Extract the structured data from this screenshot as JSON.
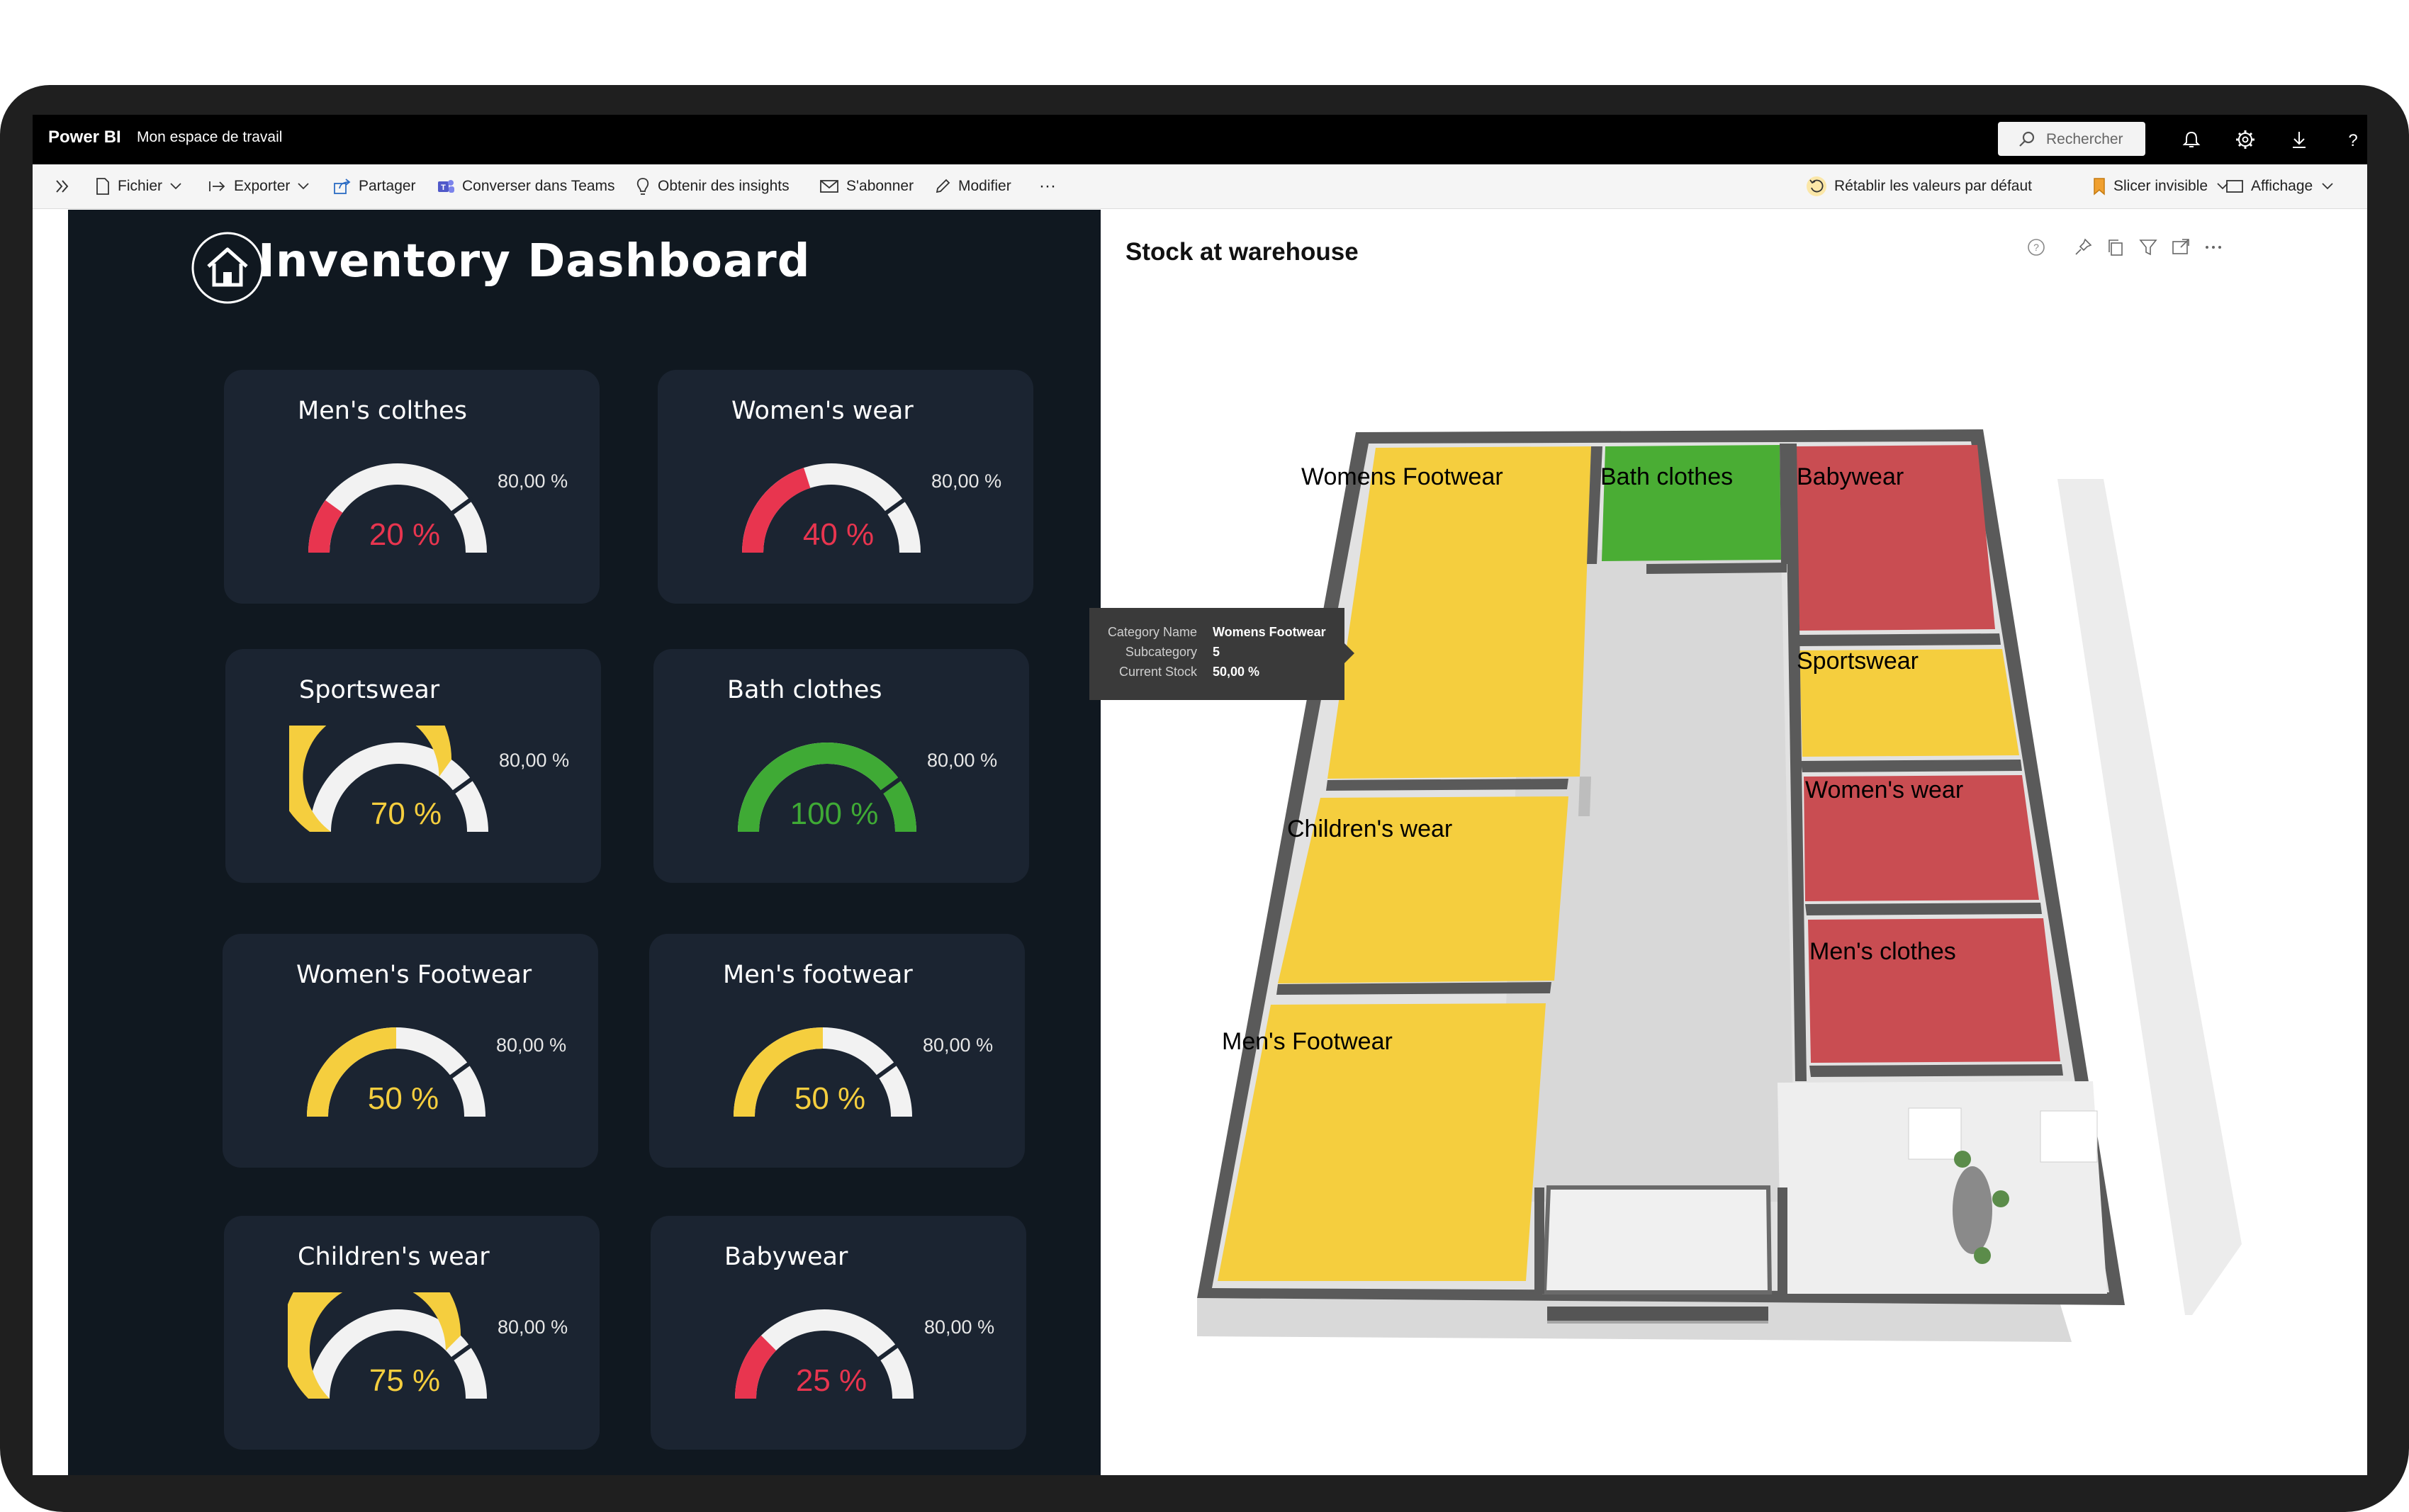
{
  "topbar": {
    "brand": "Power BI",
    "workspace": "Mon espace de travail",
    "search_placeholder": "Rechercher"
  },
  "commandbar": {
    "file": "Fichier",
    "export": "Exporter",
    "share": "Partager",
    "teams": "Converser dans Teams",
    "insights": "Obtenir des insights",
    "subscribe": "S'abonner",
    "edit": "Modifier",
    "more": "···",
    "reset": "Rétablir les valeurs par défaut",
    "slicer": "Slicer invisible",
    "view": "Affichage"
  },
  "dashboard": {
    "title": "Inventory Dashboard",
    "gauges": [
      {
        "label": "Men's colthes",
        "value": "20 %",
        "fraction": 0.2,
        "target": "80,00 %",
        "color": "#e8354f"
      },
      {
        "label": "Women's wear",
        "value": "40 %",
        "fraction": 0.4,
        "target": "80,00 %",
        "color": "#e8354f"
      },
      {
        "label": "Sportswear",
        "value": "70 %",
        "fraction": 0.7,
        "target": "80,00 %",
        "color": "#f5ce3e"
      },
      {
        "label": "Bath clothes",
        "value": "100 %",
        "fraction": 1.0,
        "target": "80,00 %",
        "color": "#3faa35"
      },
      {
        "label": "Women's Footwear",
        "value": "50 %",
        "fraction": 0.5,
        "target": "80,00 %",
        "color": "#f5ce3e"
      },
      {
        "label": "Men's footwear",
        "value": "50 %",
        "fraction": 0.5,
        "target": "80,00 %",
        "color": "#f5ce3e"
      },
      {
        "label": "Children's wear",
        "value": "75 %",
        "fraction": 0.75,
        "target": "80,00 %",
        "color": "#f5ce3e"
      },
      {
        "label": "Babywear",
        "value": "25 %",
        "fraction": 0.25,
        "target": "80,00 %",
        "color": "#e8354f"
      }
    ]
  },
  "warehouse": {
    "title": "Stock at warehouse",
    "rooms": {
      "womens_footwear": "Womens Footwear",
      "bath": "Bath clothes",
      "babywear": "Babywear",
      "sportswear": "Sportswear",
      "womens_wear": "Women's wear",
      "childrens": "Children's wear",
      "mens_clothes": "Men's clothes",
      "mens_footwear": "Men's Footwear"
    },
    "tooltip": {
      "category_key": "Category Name",
      "category_val": "Womens Footwear",
      "subcategory_key": "Subcategory",
      "subcategory_val": "5",
      "stock_key": "Current Stock",
      "stock_val": "50,00 %"
    }
  },
  "colors": {
    "yellow": "#f5ce3e",
    "red": "#c94d52",
    "green": "#4aad34",
    "panel": "#101820",
    "card": "#1b2431"
  }
}
